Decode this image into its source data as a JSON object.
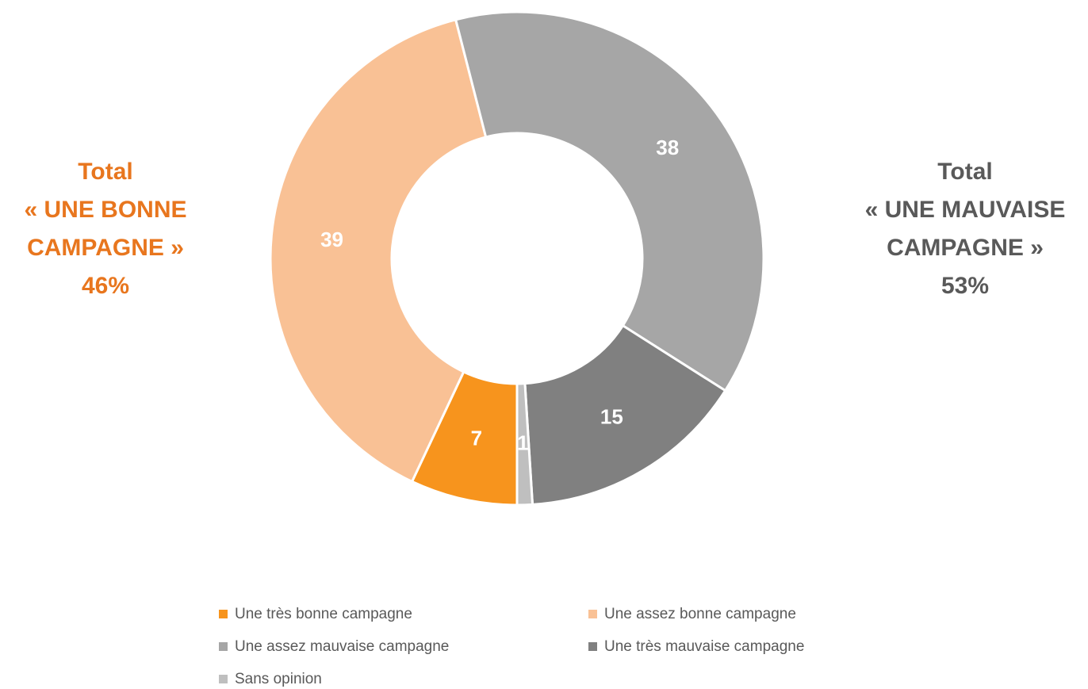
{
  "chart_data": {
    "type": "donut",
    "categories": [
      "Une très bonne campagne",
      "Une assez bonne campagne",
      "Une assez mauvaise campagne",
      "Une très mauvaise campagne",
      "Sans opinion"
    ],
    "values": [
      7,
      39,
      38,
      15,
      1
    ],
    "colors": [
      "#f7941d",
      "#f9c195",
      "#a6a6a6",
      "#808080",
      "#bfbfbf"
    ],
    "annotations": [
      {
        "lines": [
          "Total",
          "« UNE BONNE",
          "CAMPAGNE »",
          "46%"
        ],
        "color": "#e8761e"
      },
      {
        "lines": [
          "Total",
          "« UNE MAUVAISE",
          "CAMPAGNE »",
          "53%"
        ],
        "color": "#595959"
      }
    ]
  }
}
